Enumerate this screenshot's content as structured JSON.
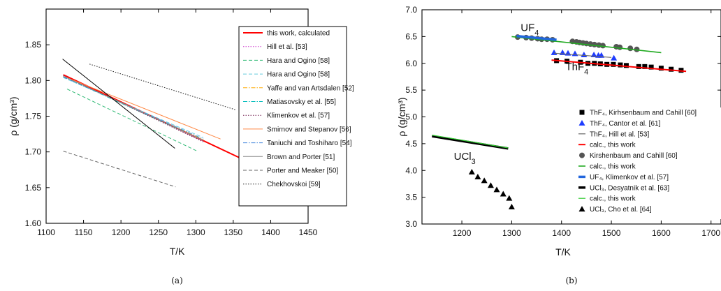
{
  "chart_data": [
    {
      "type": "line",
      "panel_label": "(a)",
      "xlabel": "T/K",
      "ylabel": "ρ (g/cm³)",
      "xlim": [
        1100,
        1450
      ],
      "ylim": [
        1.6,
        1.9
      ],
      "xticks": [
        "1100",
        "1150",
        "1200",
        "1250",
        "1300",
        "1350",
        "1400",
        "1450"
      ],
      "yticks": [
        "1.60",
        "1.65",
        "1.70",
        "1.75",
        "1.80",
        "1.85"
      ],
      "legend_position": "top-right",
      "series": [
        {
          "name": "this work, calculated",
          "color": "#ff0000",
          "dash": "solid",
          "width": 2,
          "x": [
            1123,
            1366
          ],
          "y": [
            1.808,
            1.688
          ]
        },
        {
          "name": "Hill et al. [53]",
          "color": "#cc33cc",
          "dash": "dot",
          "width": 1,
          "x": [
            1123,
            1310
          ],
          "y": [
            1.807,
            1.715
          ]
        },
        {
          "name": "Hara and Ogino [58]",
          "color": "#33bb77",
          "dash": "dash",
          "width": 1,
          "x": [
            1128,
            1302
          ],
          "y": [
            1.788,
            1.701
          ]
        },
        {
          "name": "Hara and Ogino [58]",
          "color": "#66ccdd",
          "dash": "dash",
          "width": 1,
          "x": [
            1123,
            1310
          ],
          "y": [
            1.804,
            1.72
          ]
        },
        {
          "name": "Yaffe and van Artsdalen [52]",
          "color": "#ffaa00",
          "dash": "dashdot",
          "width": 1,
          "x": [
            1123,
            1310
          ],
          "y": [
            1.806,
            1.717
          ]
        },
        {
          "name": "Matiasovsky et al. [55]",
          "color": "#00bbbb",
          "dash": "dashdot",
          "width": 1,
          "x": [
            1123,
            1310
          ],
          "y": [
            1.805,
            1.716
          ]
        },
        {
          "name": "Klimenkov et al. [57]",
          "color": "#772255",
          "dash": "dot",
          "width": 1,
          "x": [
            1123,
            1310
          ],
          "y": [
            1.807,
            1.714
          ]
        },
        {
          "name": "Smirnov and Stepanov [56]",
          "color": "#ff8844",
          "dash": "solid",
          "width": 1,
          "x": [
            1123,
            1333
          ],
          "y": [
            1.806,
            1.718
          ]
        },
        {
          "name": "Taniuchi and Toshiharo [54]",
          "color": "#4488dd",
          "dash": "dashdot",
          "width": 1,
          "x": [
            1123,
            1310
          ],
          "y": [
            1.805,
            1.718
          ]
        },
        {
          "name": "Brown and Porter [51]",
          "color": "#888888",
          "dash": "solid",
          "width": 1,
          "x": [
            1123,
            1310
          ],
          "y": [
            1.806,
            1.716
          ]
        },
        {
          "name": "Porter and Meaker [50]",
          "color": "#666666",
          "dash": "dash",
          "width": 1,
          "x": [
            1123,
            1273
          ],
          "y": [
            1.701,
            1.651
          ]
        },
        {
          "name": "Chekhovskoi [59]",
          "color": "#222222",
          "dash": "dot",
          "width": 1,
          "x": [
            1158,
            1353
          ],
          "y": [
            1.823,
            1.759
          ]
        },
        {
          "name": "",
          "color": "#000000",
          "dash": "solid",
          "width": 1,
          "x": [
            1122,
            1272
          ],
          "y": [
            1.83,
            1.705
          ]
        }
      ]
    },
    {
      "type": "scatter",
      "panel_label": "(b)",
      "xlabel": "T/K",
      "ylabel": "ρ (g/cm³)",
      "xlim": [
        1120,
        1720
      ],
      "ylim": [
        3.0,
        7.0
      ],
      "xticks": [
        "1200",
        "1300",
        "1400",
        "1500",
        "1600",
        "1700"
      ],
      "yticks": [
        "3.0",
        "3.5",
        "4.0",
        "4.5",
        "5.0",
        "5.5",
        "6.0",
        "6.5",
        "7.0"
      ],
      "legend_position": "right",
      "annotations": [
        {
          "base": "UF",
          "sub": "4",
          "x": 1318,
          "y": 6.6
        },
        {
          "base": "ThF",
          "sub": "4",
          "x": 1408,
          "y": 5.87
        },
        {
          "base": "UCl",
          "sub": "3",
          "x": 1184,
          "y": 4.2
        }
      ],
      "series": [
        {
          "name": "ThF₄, Kirhsenbaum and Cahill [60]",
          "kind": "marker",
          "marker": "square",
          "color": "#000000",
          "x": [
            1390,
            1411,
            1438,
            1453,
            1466,
            1478,
            1491,
            1504,
            1518,
            1530,
            1555,
            1567,
            1580,
            1600,
            1620,
            1640
          ],
          "y": [
            6.05,
            6.04,
            6.02,
            6.0,
            6.0,
            5.99,
            5.98,
            5.98,
            5.97,
            5.96,
            5.94,
            5.94,
            5.93,
            5.91,
            5.89,
            5.87
          ]
        },
        {
          "name": "ThF₄, Cantor et al. [61]",
          "kind": "marker",
          "marker": "triangle",
          "color": "#1e3cff",
          "x": [
            1385,
            1402,
            1413,
            1427,
            1445,
            1465,
            1474,
            1480,
            1505
          ],
          "y": [
            6.2,
            6.2,
            6.19,
            6.18,
            6.16,
            6.16,
            6.15,
            6.15,
            6.1
          ]
        },
        {
          "name": "ThF₄, Hill et al. [53]",
          "kind": "line",
          "color": "#666666",
          "dash": "solid",
          "width": 1.2,
          "x": [
            1385,
            1500
          ],
          "y": [
            6.19,
            6.11
          ]
        },
        {
          "name": "calc., this work",
          "kind": "line",
          "color": "#ff0000",
          "dash": "solid",
          "width": 2,
          "x": [
            1380,
            1650
          ],
          "y": [
            6.06,
            5.85
          ]
        },
        {
          "name": "Kirshenbaum and Cahill [60]",
          "kind": "marker",
          "marker": "circle",
          "color": "#555555",
          "x": [
            1312,
            1329,
            1340,
            1352,
            1360,
            1371,
            1382,
            1422,
            1430,
            1436,
            1443,
            1450,
            1458,
            1466,
            1475,
            1483,
            1510,
            1517,
            1538,
            1551
          ],
          "y": [
            6.49,
            6.48,
            6.47,
            6.46,
            6.45,
            6.45,
            6.44,
            6.41,
            6.4,
            6.39,
            6.38,
            6.37,
            6.36,
            6.35,
            6.34,
            6.33,
            6.31,
            6.3,
            6.28,
            6.26
          ]
        },
        {
          "name": "calc., this work",
          "kind": "line",
          "color": "#22aa22",
          "dash": "solid",
          "width": 1.6,
          "x": [
            1300,
            1600
          ],
          "y": [
            6.5,
            6.2
          ]
        },
        {
          "name": "UF₄, Klimenkov et al. [57]",
          "kind": "line",
          "color": "#2266dd",
          "dash": "solid",
          "width": 3.5,
          "x": [
            1310,
            1390
          ],
          "y": [
            6.51,
            6.44
          ]
        },
        {
          "name": "UCl₃, Desyatnik et al. [63]",
          "kind": "line",
          "color": "#000000",
          "dash": "solid",
          "width": 3.5,
          "x": [
            1140,
            1293
          ],
          "y": [
            4.64,
            4.41
          ]
        },
        {
          "name": "calc., this work",
          "kind": "line",
          "color": "#33cc33",
          "dash": "solid",
          "width": 1.2,
          "x": [
            1140,
            1293
          ],
          "y": [
            4.66,
            4.42
          ]
        },
        {
          "name": "UCl₃, Cho et al. [64]",
          "kind": "marker",
          "marker": "triangle",
          "color": "#000000",
          "x": [
            1220,
            1232,
            1245,
            1258,
            1270,
            1283,
            1295,
            1300
          ],
          "y": [
            3.97,
            3.88,
            3.81,
            3.72,
            3.64,
            3.56,
            3.48,
            3.32
          ]
        }
      ]
    }
  ]
}
